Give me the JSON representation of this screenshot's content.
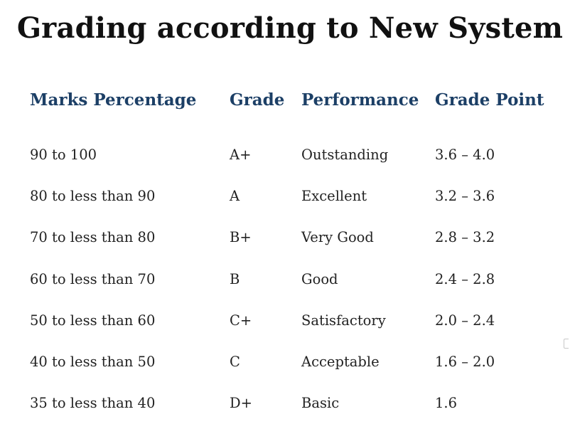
{
  "title": "Grading according to New System",
  "table": {
    "headers": [
      "Marks Percentage",
      "Grade",
      "Performance",
      "Grade Point"
    ],
    "rows": [
      {
        "marks": "90 to 100",
        "grade": "A+",
        "performance": "Outstanding",
        "point": "3.6 – 4.0"
      },
      {
        "marks": "80 to less than 90",
        "grade": "A",
        "performance": "Excellent",
        "point": "3.2 – 3.6"
      },
      {
        "marks": "70 to less than 80",
        "grade": "B+",
        "performance": "Very Good",
        "point": "2.8 – 3.2"
      },
      {
        "marks": "60 to less than 70",
        "grade": "B",
        "performance": "Good",
        "point": "2.4 – 2.8"
      },
      {
        "marks": "50 to less than 60",
        "grade": "C+",
        "performance": "Satisfactory",
        "point": "2.0 – 2.4"
      },
      {
        "marks": "40 to less than 50",
        "grade": "C",
        "performance": "Acceptable",
        "point": "1.6 – 2.0"
      },
      {
        "marks": "35 to less than 40",
        "grade": "D+",
        "performance": "Basic",
        "point": "1.6"
      }
    ]
  },
  "colors": {
    "header": "#1c3f66",
    "text": "#222222",
    "title": "#111111"
  }
}
